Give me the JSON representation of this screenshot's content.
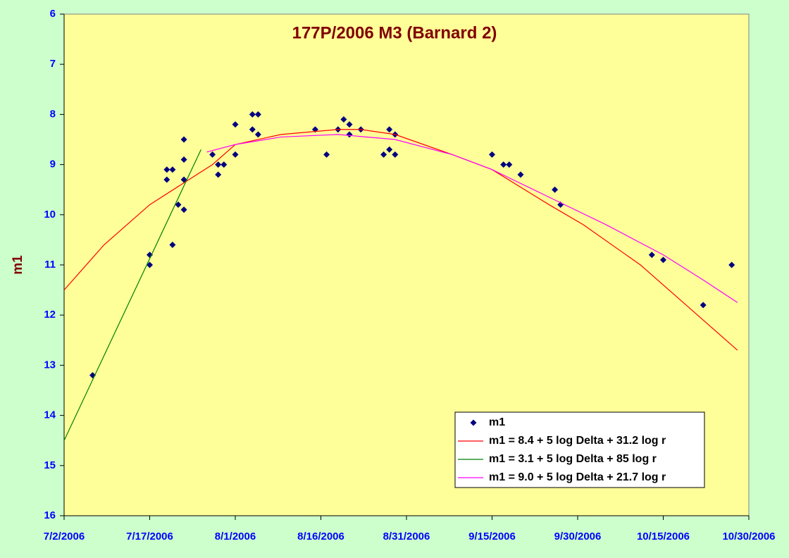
{
  "chart_data": {
    "type": "scatter",
    "title": "177P/2006 M3 (Barnard 2)",
    "y_label": "m1",
    "xlim": [
      "2006-07-02",
      "2006-10-30"
    ],
    "xticks": [
      {
        "value": "2006-07-02",
        "label": "7/2/2006"
      },
      {
        "value": "2006-07-17",
        "label": "7/17/2006"
      },
      {
        "value": "2006-08-01",
        "label": "8/1/2006"
      },
      {
        "value": "2006-08-16",
        "label": "8/16/2006"
      },
      {
        "value": "2006-08-31",
        "label": "8/31/2006"
      },
      {
        "value": "2006-09-15",
        "label": "9/15/2006"
      },
      {
        "value": "2006-09-30",
        "label": "9/30/2006"
      },
      {
        "value": "2006-10-15",
        "label": "10/15/2006"
      },
      {
        "value": "2006-10-30",
        "label": "10/30/2006"
      }
    ],
    "ylim": [
      16,
      6
    ],
    "yticks": [
      6,
      7,
      8,
      9,
      10,
      11,
      12,
      13,
      14,
      15,
      16
    ],
    "y_inverted": true,
    "legend": "bottom-right",
    "series": [
      {
        "name": "m1",
        "mode": "markers",
        "color": "#000080",
        "x": [
          "2006-07-07",
          "2006-07-17",
          "2006-07-17",
          "2006-07-20",
          "2006-07-20",
          "2006-07-21",
          "2006-07-21",
          "2006-07-22",
          "2006-07-23",
          "2006-07-23",
          "2006-07-23",
          "2006-07-23",
          "2006-07-28",
          "2006-07-29",
          "2006-07-29",
          "2006-07-30",
          "2006-08-01",
          "2006-08-01",
          "2006-08-04",
          "2006-08-04",
          "2006-08-05",
          "2006-08-05",
          "2006-08-15",
          "2006-08-17",
          "2006-08-19",
          "2006-08-20",
          "2006-08-21",
          "2006-08-21",
          "2006-08-23",
          "2006-08-27",
          "2006-08-28",
          "2006-08-28",
          "2006-08-29",
          "2006-08-29",
          "2006-09-15",
          "2006-09-17",
          "2006-09-18",
          "2006-09-20",
          "2006-09-26",
          "2006-09-27",
          "2006-10-13",
          "2006-10-15",
          "2006-10-22",
          "2006-10-27"
        ],
        "values": [
          13.2,
          10.8,
          11.0,
          9.3,
          9.1,
          9.1,
          10.6,
          9.8,
          9.9,
          9.3,
          8.9,
          8.5,
          8.8,
          9.2,
          9.0,
          9.0,
          8.8,
          8.2,
          8.0,
          8.3,
          8.0,
          8.4,
          8.3,
          8.8,
          8.3,
          8.1,
          8.2,
          8.4,
          8.3,
          8.8,
          8.3,
          8.7,
          8.4,
          8.8,
          8.8,
          9.0,
          9.0,
          9.2,
          9.5,
          9.8,
          10.8,
          10.9,
          11.8,
          11.0
        ]
      },
      {
        "name": "m1 = 8.4 + 5 log Delta + 31.2 log r",
        "mode": "line",
        "color": "#ff0000",
        "x": [
          "2006-07-02",
          "2006-07-09",
          "2006-07-17",
          "2006-07-28",
          "2006-08-01",
          "2006-08-09",
          "2006-08-19",
          "2006-08-23",
          "2006-08-29",
          "2006-09-08",
          "2006-09-15",
          "2006-09-25",
          "2006-10-01",
          "2006-10-11",
          "2006-10-17",
          "2006-10-22",
          "2006-10-28"
        ],
        "values": [
          11.5,
          10.6,
          9.8,
          9.0,
          8.6,
          8.4,
          8.3,
          8.3,
          8.4,
          8.8,
          9.1,
          9.8,
          10.2,
          11.0,
          11.6,
          12.1,
          12.7
        ]
      },
      {
        "name": "m1 = 3.1 + 5 log Delta + 85 log r",
        "mode": "line",
        "color": "#008000",
        "x": [
          "2006-07-02",
          "2006-07-26"
        ],
        "values": [
          14.5,
          8.7
        ]
      },
      {
        "name": "m1 = 9.0 + 5 log Delta + 21.7 log r",
        "mode": "line",
        "color": "#ff00ff",
        "x": [
          "2006-07-27",
          "2006-08-01",
          "2006-08-09",
          "2006-08-19",
          "2006-08-29",
          "2006-09-08",
          "2006-09-15",
          "2006-09-25",
          "2006-10-05",
          "2006-10-15",
          "2006-10-22",
          "2006-10-28"
        ],
        "values": [
          8.75,
          8.6,
          8.45,
          8.4,
          8.5,
          8.8,
          9.1,
          9.65,
          10.2,
          10.8,
          11.3,
          11.75
        ]
      }
    ]
  }
}
